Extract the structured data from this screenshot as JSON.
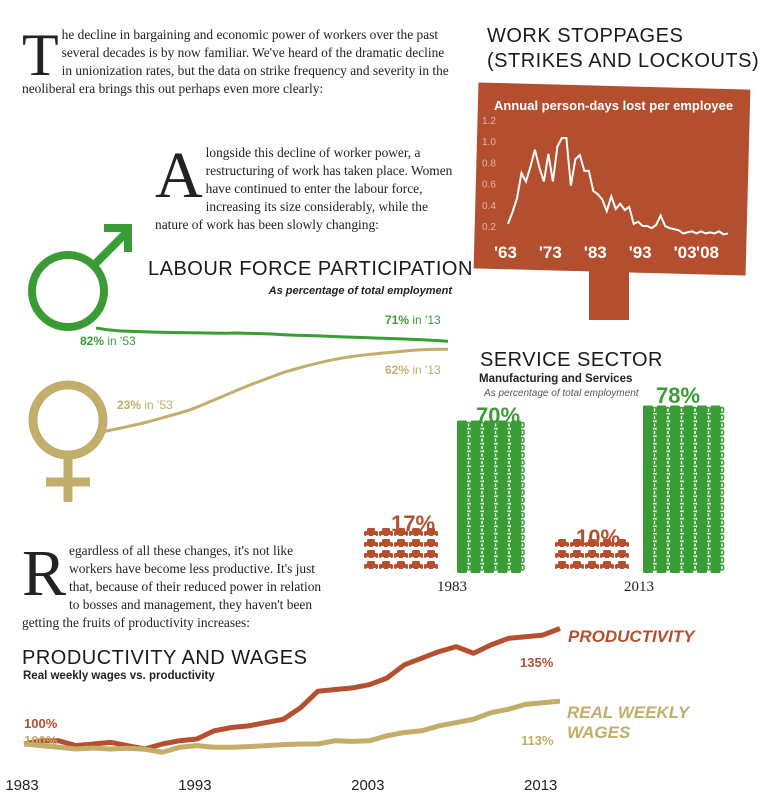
{
  "intro": {
    "para1_cap": "T",
    "para1": "he decline in bargaining and economic power of workers over the past several decades is by now familiar. We've heard of the dramatic decline in unionization rates, but the data on strike frequency and severity in the neoliberal era brings this out perhaps even more clearly:",
    "para2_cap": "A",
    "para2": "longside this decline of worker power, a restructuring of work has taken place. Women have continued to enter the labour force, increasing its size considerably, while the nature of work has been slowly changing:",
    "para3_cap": "R",
    "para3": "egardless of all these changes, it's not like workers have become less productive. It's just that, because of their reduced power in relation to bosses and management, they haven't been getting the fruits of productivity increases:"
  },
  "colors": {
    "green": "#3a9c35",
    "tan": "#c2ad6a",
    "rust": "#b5502f",
    "sign": "#b34e2f"
  },
  "icons": [
    "male-symbol-icon",
    "female-symbol-icon",
    "car-icon",
    "cup-icon"
  ],
  "work_stoppages": {
    "title_line1": "WORK STOPPAGES",
    "title_line2": "(STRIKES AND LOCKOUTS)",
    "chart_data": {
      "type": "line",
      "title": "Annual person-days lost per employee",
      "yticks": [
        "1.2",
        "1.0",
        "0.8",
        "0.6",
        "0.4",
        "0.2"
      ],
      "ylim": [
        0.2,
        1.2
      ],
      "xticks": [
        "'63",
        "'73",
        "'83",
        "'93",
        "'03",
        "'08"
      ],
      "x": [
        1963,
        1964,
        1965,
        1966,
        1967,
        1968,
        1969,
        1970,
        1971,
        1972,
        1973,
        1974,
        1975,
        1976,
        1977,
        1978,
        1979,
        1980,
        1981,
        1982,
        1983,
        1984,
        1985,
        1986,
        1987,
        1988,
        1989,
        1990,
        1991,
        1992,
        1993,
        1994,
        1995,
        1996,
        1997,
        1998,
        1999,
        2000,
        2001,
        2002,
        2003,
        2004,
        2005,
        2006,
        2007,
        2008,
        2009,
        2010,
        2011,
        2012
      ],
      "values": [
        0.22,
        0.33,
        0.46,
        0.7,
        0.62,
        0.76,
        0.92,
        0.75,
        0.62,
        0.88,
        0.62,
        0.95,
        1.03,
        1.03,
        0.58,
        0.83,
        0.87,
        0.72,
        0.72,
        0.53,
        0.5,
        0.45,
        0.34,
        0.48,
        0.36,
        0.41,
        0.35,
        0.38,
        0.22,
        0.24,
        0.2,
        0.2,
        0.18,
        0.21,
        0.3,
        0.2,
        0.18,
        0.17,
        0.16,
        0.13,
        0.14,
        0.15,
        0.13,
        0.15,
        0.13,
        0.14,
        0.13,
        0.15,
        0.12,
        0.13
      ]
    }
  },
  "labour_force": {
    "title": "LABOUR FORCE PARTICIPATION",
    "subtitle": "As percentage of total employment",
    "chart_data": {
      "type": "line",
      "x": [
        1953,
        1955,
        1957,
        1959,
        1961,
        1963,
        1965,
        1967,
        1969,
        1971,
        1973,
        1975,
        1977,
        1979,
        1981,
        1983,
        1985,
        1987,
        1989,
        1991,
        1993,
        1995,
        1997,
        1999,
        2001,
        2003,
        2005,
        2007,
        2009,
        2011,
        2013
      ],
      "series": [
        {
          "values": [
            82,
            80.5,
            79.6,
            79.2,
            78.9,
            78.6,
            78.4,
            78.1,
            78.0,
            77.9,
            77.7,
            77.6,
            77.8,
            77.5,
            77.3,
            77.0,
            76.4,
            76.0,
            75.8,
            75.4,
            75.0,
            74.6,
            74.3,
            74.0,
            73.6,
            73.3,
            72.9,
            72.5,
            72.1,
            71.6,
            71
          ]
        },
        {
          "values": [
            23,
            25.0,
            26.0,
            27.2,
            28.4,
            29.8,
            31.3,
            32.8,
            34.4,
            36.5,
            38.8,
            41.0,
            43.3,
            45.5,
            47.5,
            49.5,
            51.5,
            53.0,
            54.5,
            55.8,
            57.0,
            58.0,
            58.8,
            59.5,
            60.0,
            60.5,
            61.0,
            61.5,
            61.8,
            62.0,
            62
          ]
        }
      ],
      "labels": {
        "male_start_pct": "82%",
        "male_start_in": "in '53",
        "male_end_pct": "71%",
        "male_end_in": "in '13",
        "female_start_pct": "23%",
        "female_start_in": "in '53",
        "female_end_pct": "62%",
        "female_end_in": "in '13"
      }
    }
  },
  "service_sector": {
    "title": "SERVICE SECTOR",
    "subtitle": "Manufacturing and Services",
    "note": "As percentage of total employment",
    "chart_data": {
      "type": "bar",
      "categories": [
        "1983",
        "2013"
      ],
      "series": [
        {
          "values": [
            17,
            10
          ],
          "labels": [
            "17%",
            "10%"
          ]
        },
        {
          "values": [
            70,
            78
          ],
          "labels": [
            "70%",
            "78%"
          ]
        }
      ]
    }
  },
  "productivity": {
    "title": "PRODUCTIVITY AND WAGES",
    "subtitle": "Real weekly wages vs. productivity",
    "chart_data": {
      "type": "line",
      "xticks": [
        "1983",
        "1993",
        "2003",
        "2013"
      ],
      "x": [
        1983,
        1984,
        1985,
        1986,
        1987,
        1988,
        1989,
        1990,
        1991,
        1992,
        1993,
        1994,
        1995,
        1996,
        1997,
        1998,
        1999,
        2000,
        2001,
        2002,
        2003,
        2004,
        2005,
        2006,
        2007,
        2008,
        2009,
        2010,
        2011,
        2012,
        2013,
        2014
      ],
      "series": [
        {
          "name": "PRODUCTIVITY",
          "values": [
            100,
            101,
            101,
            99.5,
            100,
            100.5,
            99.5,
            98.5,
            100,
            101,
            101.5,
            104,
            105,
            105.5,
            106.5,
            107.5,
            111,
            116,
            116.5,
            117,
            118,
            120,
            124,
            126,
            128,
            129.5,
            127.5,
            130,
            132,
            132.5,
            133,
            135
          ]
        },
        {
          "name": "REAL WEEKLY WAGES",
          "values": [
            100,
            99.5,
            99,
            98.5,
            98.8,
            98.5,
            98.7,
            98.4,
            97.5,
            99,
            99.5,
            99,
            99,
            99.2,
            99.5,
            99.8,
            100,
            100,
            101,
            100.8,
            101,
            102.5,
            103.5,
            104,
            105.5,
            106.5,
            107.5,
            109.5,
            110.5,
            112,
            112.5,
            113
          ]
        }
      ],
      "labels": {
        "prod_start": "100%",
        "wage_start": "100%",
        "prod_end": "135%",
        "wage_end": "113%",
        "legend_prod": "PRODUCTIVITY",
        "legend_wage_line1": "REAL WEEKLY",
        "legend_wage_line2": "WAGES"
      }
    }
  }
}
